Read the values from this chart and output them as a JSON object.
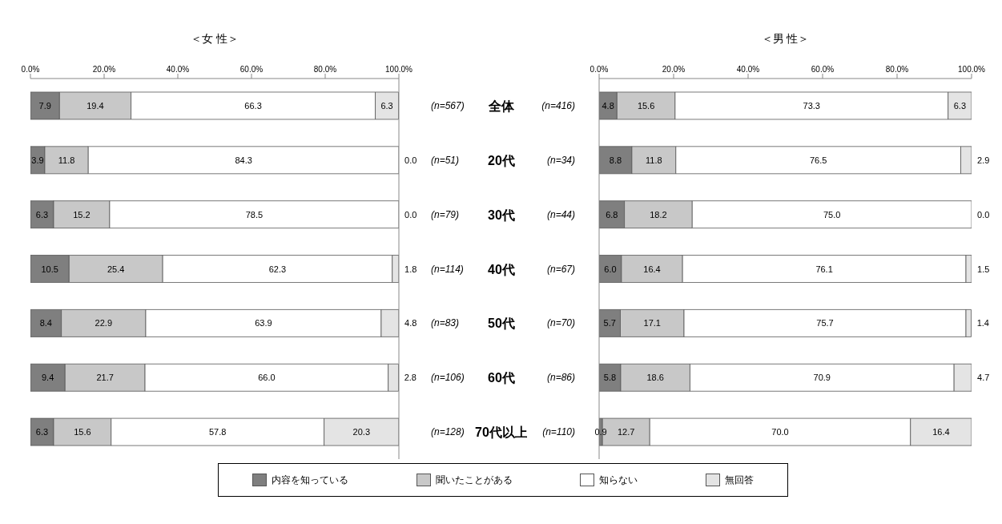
{
  "chart_data": [
    {
      "type": "bar",
      "title": "＜女 性＞",
      "orientation": "horizontal",
      "stacked": true,
      "categories": [
        "全体",
        "20代",
        "30代",
        "40代",
        "50代",
        "60代",
        "70代以上"
      ],
      "annotations": [
        "(n=567)",
        "(n=51)",
        "(n=79)",
        "(n=114)",
        "(n=83)",
        "(n=106)",
        "(n=128)"
      ],
      "xlim": [
        0,
        100
      ],
      "xticks": [
        {
          "value": 0,
          "label": "0.0%"
        },
        {
          "value": 20,
          "label": "20.0%"
        },
        {
          "value": 40,
          "label": "40.0%"
        },
        {
          "value": 60,
          "label": "60.0%"
        },
        {
          "value": 80,
          "label": "80.0%"
        },
        {
          "value": 100,
          "label": "100.0%"
        }
      ],
      "legend": "bottom",
      "series": [
        {
          "name": "内容を知っている",
          "color": "#7f7f7f",
          "values": [
            7.9,
            3.9,
            6.3,
            10.5,
            8.4,
            9.4,
            6.3
          ],
          "value_labels": [
            "7.9",
            "3.9",
            "6.3",
            "10.5",
            "8.4",
            "9.4",
            "6.3"
          ]
        },
        {
          "name": "聞いたことがある",
          "color": "#c8c8c8",
          "values": [
            19.4,
            11.8,
            15.2,
            25.4,
            22.9,
            21.7,
            15.6
          ],
          "value_labels": [
            "19.4",
            "11.8",
            "15.2",
            "25.4",
            "22.9",
            "21.7",
            "15.6"
          ]
        },
        {
          "name": "知らない",
          "color": "#ffffff",
          "values": [
            66.3,
            84.3,
            78.5,
            62.3,
            63.9,
            66.0,
            57.8
          ],
          "value_labels": [
            "66.3",
            "84.3",
            "78.5",
            "62.3",
            "63.9",
            "66.0",
            "57.8"
          ]
        },
        {
          "name": "無回答",
          "color": "#e4e4e4",
          "values": [
            6.3,
            0.0,
            0.0,
            1.8,
            4.8,
            2.8,
            20.3
          ],
          "value_labels": [
            "6.3",
            "0.0",
            "0.0",
            "1.8",
            "4.8",
            "2.8",
            "20.3"
          ]
        }
      ]
    },
    {
      "type": "bar",
      "title": "＜男 性＞",
      "orientation": "horizontal",
      "stacked": true,
      "categories": [
        null,
        null,
        null,
        null,
        null,
        null,
        null
      ],
      "annotations": [
        "(n=416)",
        "(n=34)",
        "(n=44)",
        "(n=67)",
        "(n=70)",
        "(n=86)",
        "(n=110)"
      ],
      "xlim": [
        0,
        100
      ],
      "xticks": [
        {
          "value": 0,
          "label": "0.0%"
        },
        {
          "value": 20,
          "label": "20.0%"
        },
        {
          "value": 40,
          "label": "40.0%"
        },
        {
          "value": 60,
          "label": "60.0%"
        },
        {
          "value": 80,
          "label": "80.0%"
        },
        {
          "value": 100,
          "label": "100.0%"
        }
      ],
      "series": [
        {
          "color": "#7f7f7f",
          "values": [
            4.8,
            8.8,
            6.8,
            6.0,
            5.7,
            5.8,
            0.9
          ],
          "value_labels": [
            "4.8",
            "8.8",
            "6.8",
            "6.0",
            "5.7",
            "5.8",
            "0.9"
          ]
        },
        {
          "color": "#c8c8c8",
          "values": [
            15.6,
            11.8,
            18.2,
            16.4,
            17.1,
            18.6,
            12.7
          ],
          "value_labels": [
            "15.6",
            "11.8",
            "18.2",
            "16.4",
            "17.1",
            "18.6",
            "12.7"
          ]
        },
        {
          "color": "#ffffff",
          "values": [
            73.3,
            76.5,
            75.0,
            76.1,
            75.7,
            70.9,
            70.0
          ],
          "value_labels": [
            "73.3",
            "76.5",
            "75.0",
            "76.1",
            "75.7",
            "70.9",
            "70.0"
          ]
        },
        {
          "color": "#e4e4e4",
          "values": [
            6.3,
            2.9,
            0.0,
            1.5,
            1.4,
            4.7,
            16.4
          ],
          "value_labels": [
            "6.3",
            "2.9",
            "0.0",
            "1.5",
            "1.4",
            "4.7",
            "16.4"
          ]
        }
      ]
    }
  ]
}
